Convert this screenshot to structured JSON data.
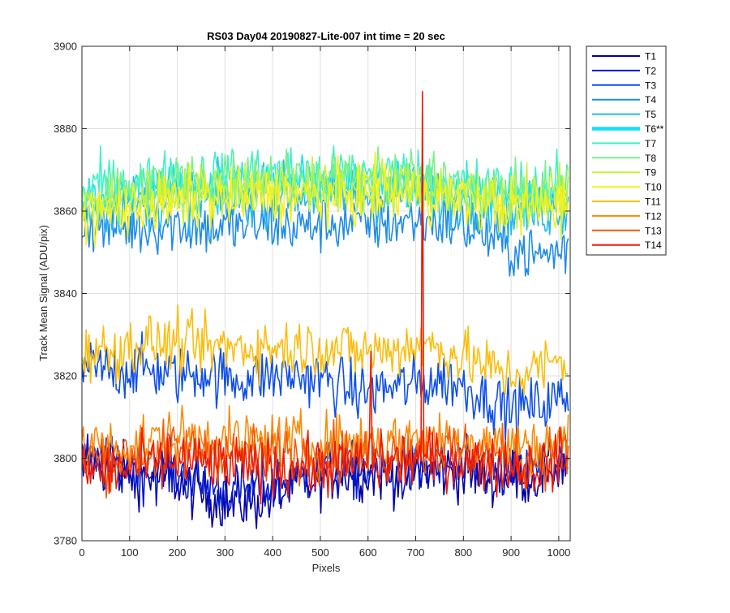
{
  "chart_data": {
    "type": "line",
    "title": "RS03 Day04 20190827-Lite-007 int time = 20 sec",
    "xlabel": "Pixels",
    "ylabel": "Track Mean Signal (ADU/pix)",
    "xlim": [
      0,
      1024
    ],
    "ylim": [
      3780,
      3900
    ],
    "xticks": [
      0,
      100,
      200,
      300,
      400,
      500,
      600,
      700,
      800,
      900,
      1000
    ],
    "yticks": [
      3780,
      3800,
      3820,
      3840,
      3860,
      3880,
      3900
    ],
    "grid": true,
    "legend_position": "outside-right",
    "x": [
      0,
      64,
      128,
      192,
      256,
      320,
      384,
      448,
      512,
      576,
      640,
      704,
      768,
      832,
      896,
      960,
      1020
    ],
    "series": [
      {
        "name": "T1",
        "color": "#0000a8",
        "noise": 5,
        "highlight": false,
        "values": [
          3800,
          3797,
          3796,
          3795,
          3791,
          3789,
          3790,
          3793,
          3796,
          3797,
          3796,
          3797,
          3797,
          3796,
          3795,
          3796,
          3799
        ]
      },
      {
        "name": "T2",
        "color": "#0019d2",
        "noise": 5,
        "highlight": false,
        "values": [
          3799,
          3798,
          3797,
          3797,
          3794,
          3792,
          3793,
          3795,
          3797,
          3797,
          3796,
          3797,
          3798,
          3797,
          3796,
          3797,
          3799
        ]
      },
      {
        "name": "T3",
        "color": "#0e4fe8",
        "noise": 5,
        "highlight": false,
        "values": [
          3822,
          3821,
          3822,
          3820,
          3821,
          3819,
          3820,
          3820,
          3819,
          3816,
          3817,
          3818,
          3819,
          3816,
          3812,
          3813,
          3815
        ]
      },
      {
        "name": "T4",
        "color": "#1e8be8",
        "noise": 5,
        "highlight": false,
        "values": [
          3857,
          3856,
          3856,
          3857,
          3856,
          3856,
          3857,
          3856,
          3857,
          3857,
          3857,
          3858,
          3857,
          3855,
          3851,
          3849,
          3851
        ]
      },
      {
        "name": "T5",
        "color": "#27b7ee",
        "noise": 5,
        "highlight": false,
        "values": [
          3861,
          3861,
          3862,
          3863,
          3863,
          3863,
          3864,
          3864,
          3864,
          3864,
          3864,
          3864,
          3863,
          3862,
          3860,
          3860,
          3861
        ]
      },
      {
        "name": "T6**",
        "color": "#15e0f7",
        "noise": 4,
        "highlight": true,
        "values": [
          3864,
          3864,
          3865,
          3866,
          3866,
          3866,
          3867,
          3867,
          3866,
          3866,
          3866,
          3866,
          3865,
          3864,
          3863,
          3863,
          3864
        ]
      },
      {
        "name": "T7",
        "color": "#3ef2c6",
        "noise": 5,
        "highlight": false,
        "values": [
          3866,
          3866,
          3867,
          3868,
          3868,
          3869,
          3869,
          3869,
          3868,
          3869,
          3869,
          3868,
          3867,
          3866,
          3865,
          3865,
          3866
        ]
      },
      {
        "name": "T8",
        "color": "#7df08a",
        "noise": 5,
        "highlight": false,
        "values": [
          3864,
          3865,
          3866,
          3867,
          3868,
          3868,
          3868,
          3868,
          3867,
          3868,
          3868,
          3868,
          3866,
          3865,
          3864,
          3864,
          3865
        ]
      },
      {
        "name": "T9",
        "color": "#c5f03f",
        "noise": 5,
        "highlight": false,
        "values": [
          3861,
          3862,
          3863,
          3864,
          3865,
          3865,
          3866,
          3866,
          3865,
          3866,
          3866,
          3866,
          3865,
          3864,
          3863,
          3863,
          3864
        ]
      },
      {
        "name": "T10",
        "color": "#f4f21a",
        "noise": 5,
        "highlight": false,
        "values": [
          3859,
          3860,
          3861,
          3862,
          3863,
          3863,
          3864,
          3864,
          3863,
          3864,
          3864,
          3864,
          3863,
          3862,
          3861,
          3861,
          3862
        ]
      },
      {
        "name": "T11",
        "color": "#fbbd0d",
        "noise": 5,
        "highlight": false,
        "values": [
          3826,
          3826,
          3828,
          3828,
          3827,
          3827,
          3827,
          3827,
          3827,
          3826,
          3826,
          3828,
          3826,
          3823,
          3820,
          3822,
          3824
        ]
      },
      {
        "name": "T12",
        "color": "#fa8a0a",
        "noise": 5,
        "highlight": false,
        "values": [
          3803,
          3803,
          3804,
          3805,
          3805,
          3804,
          3804,
          3804,
          3804,
          3804,
          3804,
          3805,
          3805,
          3804,
          3803,
          3803,
          3804
        ]
      },
      {
        "name": "T13",
        "color": "#f45a08",
        "noise": 5,
        "highlight": false,
        "values": [
          3800,
          3800,
          3801,
          3802,
          3802,
          3801,
          3801,
          3801,
          3801,
          3801,
          3801,
          3802,
          3802,
          3801,
          3800,
          3800,
          3801
        ]
      },
      {
        "name": "T14",
        "color": "#ee1a06",
        "noise": 5,
        "highlight": false,
        "values": [
          3797,
          3797,
          3798,
          3799,
          3799,
          3798,
          3798,
          3798,
          3798,
          3799,
          3799,
          3800,
          3800,
          3799,
          3798,
          3798,
          3800
        ]
      }
    ],
    "annotations": [
      {
        "type": "spike",
        "series": "T14",
        "x": 715,
        "y": 3889
      },
      {
        "type": "spike",
        "series": "T14",
        "x": 605,
        "y": 3826
      }
    ]
  }
}
